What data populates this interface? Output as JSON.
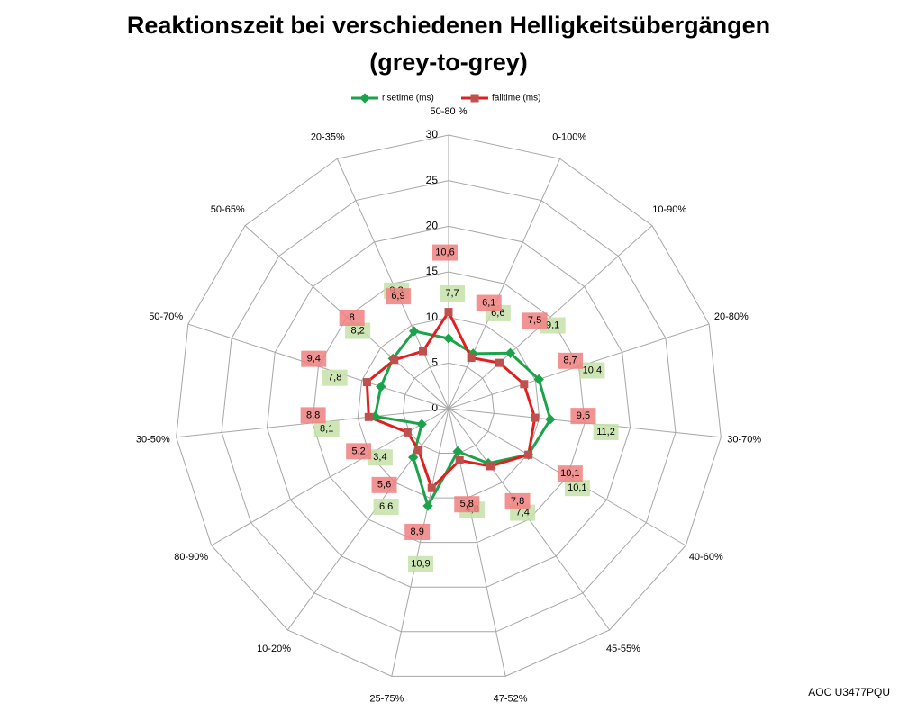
{
  "chart_data": {
    "type": "radar",
    "title": "Reaktionszeit bei verschiedenen Helligkeitsübergängen",
    "subtitle": "(grey-to-grey)",
    "footer": "AOC U3477PQU",
    "categories": [
      "50-80 %",
      "0-100%",
      "10-90%",
      "20-80%",
      "30-70%",
      "40-60%",
      "45-55%",
      "47-52%",
      "25-75%",
      "10-20%",
      "80-90%",
      "30-50%",
      "50-70%",
      "50-65%",
      "20-35%"
    ],
    "ylim": [
      0,
      30
    ],
    "yticks": [
      0,
      5,
      10,
      15,
      20,
      25,
      30
    ],
    "grid": true,
    "series": [
      {
        "name": "risetime (ms)",
        "color": "#1aa34a",
        "label_color": "#c6e0a8",
        "values": [
          7.7,
          6.6,
          9.1,
          10.4,
          11.2,
          10.1,
          7.4,
          4.8,
          10.9,
          6.6,
          3.4,
          8.1,
          7.8,
          8.2,
          9.3
        ],
        "value_labels": [
          "7,7",
          "6,6",
          "9,1",
          "10,4",
          "11,2",
          "10,1",
          "7,4",
          "4,8",
          "10,9",
          "6,6",
          "3,4",
          "8,1",
          "7,8",
          "8,2",
          "9,3"
        ]
      },
      {
        "name": "falltime (ms)",
        "color": "#e02020",
        "label_color": "#f08080",
        "values": [
          10.6,
          6.1,
          7.5,
          8.7,
          9.5,
          10.1,
          7.8,
          5.8,
          8.9,
          5.6,
          5.2,
          8.8,
          9.4,
          8,
          6.9
        ],
        "value_labels": [
          "10,6",
          "6,1",
          "7,5",
          "8,7",
          "9,5",
          "10,1",
          "7,8",
          "5,8",
          "8,9",
          "5,6",
          "5,2",
          "8,8",
          "9,4",
          "8",
          "6,9"
        ]
      }
    ]
  }
}
